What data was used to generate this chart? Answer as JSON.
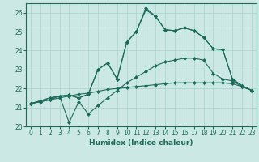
{
  "background_color": "#cce8e4",
  "grid_color": "#aad0cc",
  "line_color": "#1a6b5a",
  "xlabel": "Humidex (Indice chaleur)",
  "xlim": [
    -0.5,
    23.5
  ],
  "ylim": [
    20.0,
    26.5
  ],
  "yticks": [
    20,
    21,
    22,
    23,
    24,
    25,
    26
  ],
  "xticks": [
    0,
    1,
    2,
    3,
    4,
    5,
    6,
    7,
    8,
    9,
    10,
    11,
    12,
    13,
    14,
    15,
    16,
    17,
    18,
    19,
    20,
    21,
    22,
    23
  ],
  "series1_x": [
    0,
    1,
    2,
    3,
    4,
    5,
    6,
    7,
    8,
    9,
    10,
    11,
    12,
    13,
    14,
    15,
    16,
    17,
    18,
    19,
    20,
    21,
    22,
    23
  ],
  "series1_y": [
    21.2,
    21.3,
    21.4,
    21.5,
    21.6,
    21.7,
    21.75,
    21.85,
    21.95,
    22.0,
    22.05,
    22.1,
    22.15,
    22.2,
    22.25,
    22.3,
    22.3,
    22.3,
    22.3,
    22.3,
    22.3,
    22.25,
    22.1,
    21.9
  ],
  "series2_x": [
    0,
    1,
    2,
    3,
    4,
    5,
    6,
    7,
    8,
    9,
    10,
    11,
    12,
    13,
    14,
    15,
    16,
    17,
    18,
    19,
    20,
    21,
    22,
    23
  ],
  "series2_y": [
    21.2,
    21.3,
    21.4,
    21.6,
    20.2,
    21.3,
    20.65,
    21.1,
    21.5,
    21.9,
    22.3,
    22.6,
    22.9,
    23.2,
    23.4,
    23.5,
    23.6,
    23.6,
    23.5,
    22.8,
    22.5,
    22.4,
    22.1,
    21.9
  ],
  "series3_x": [
    0,
    2,
    3,
    4,
    5,
    6,
    7,
    8,
    9,
    10,
    11,
    12,
    13,
    14,
    15,
    16,
    17,
    18,
    19,
    20,
    21,
    22,
    23
  ],
  "series3_y": [
    21.2,
    21.5,
    21.6,
    21.65,
    21.5,
    21.7,
    23.0,
    23.35,
    22.5,
    24.45,
    25.0,
    26.15,
    25.8,
    25.1,
    25.05,
    25.2,
    25.05,
    24.7,
    24.1,
    24.05,
    22.5,
    22.15,
    21.9
  ],
  "series4_x": [
    0,
    2,
    3,
    4,
    5,
    6,
    7,
    8,
    9,
    10,
    11,
    12,
    13,
    14,
    15,
    16,
    17,
    18,
    19,
    20,
    21,
    22,
    23
  ],
  "series4_y": [
    21.2,
    21.5,
    21.6,
    21.65,
    21.5,
    21.7,
    23.0,
    23.35,
    22.5,
    24.45,
    25.0,
    26.25,
    25.8,
    25.1,
    25.05,
    25.2,
    25.05,
    24.7,
    24.1,
    24.05,
    22.5,
    22.15,
    21.9
  ]
}
